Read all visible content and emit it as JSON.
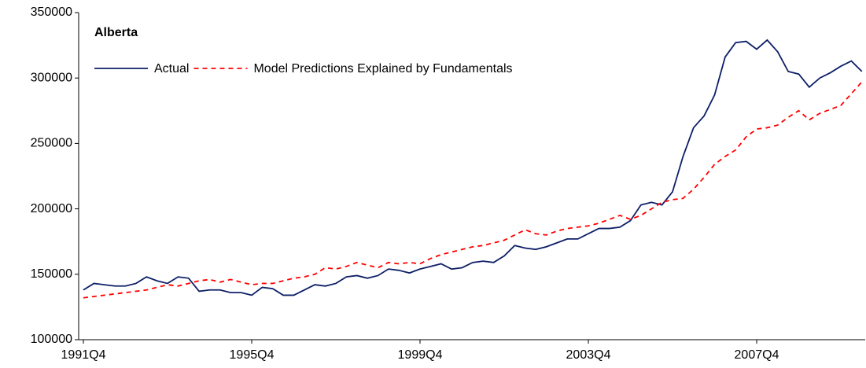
{
  "chart_data": {
    "type": "line",
    "title": "Alberta",
    "categories": [
      "1991Q4",
      null,
      null,
      null,
      null,
      null,
      null,
      null,
      null,
      null,
      null,
      null,
      null,
      null,
      null,
      null,
      "1995Q4",
      null,
      null,
      null,
      null,
      null,
      null,
      null,
      null,
      null,
      null,
      null,
      null,
      null,
      null,
      null,
      "1999Q4",
      null,
      null,
      null,
      null,
      null,
      null,
      null,
      null,
      null,
      null,
      null,
      null,
      null,
      null,
      null,
      "2003Q4",
      null,
      null,
      null,
      null,
      null,
      null,
      null,
      null,
      null,
      null,
      null,
      null,
      null,
      null,
      null,
      "2007Q4",
      null,
      null,
      null,
      null,
      null,
      null,
      null,
      null,
      null,
      null
    ],
    "series": [
      {
        "name": "Actual",
        "color": "#0d1f66",
        "dash": false,
        "values": [
          138000,
          143000,
          142000,
          141000,
          141000,
          143000,
          148000,
          145000,
          143000,
          148000,
          147000,
          137000,
          138000,
          138000,
          136000,
          136000,
          134000,
          140000,
          139000,
          134000,
          134000,
          138000,
          142000,
          141000,
          143000,
          148000,
          149000,
          147000,
          149000,
          154000,
          153000,
          151000,
          154000,
          156000,
          158000,
          154000,
          155000,
          159000,
          160000,
          159000,
          164000,
          172000,
          170000,
          169000,
          171000,
          174000,
          177000,
          177000,
          181000,
          185000,
          185000,
          186000,
          191000,
          203000,
          205000,
          203000,
          213000,
          240000,
          262000,
          271000,
          287000,
          316000,
          327000,
          328000,
          322000,
          329000,
          320000,
          305000,
          303000,
          293000,
          300000,
          304000,
          309000,
          313000,
          305000
        ]
      },
      {
        "name": "Model Predictions Explained by Fundamentals",
        "color": "#ff0000",
        "dash": true,
        "values": [
          132000,
          133000,
          134000,
          135000,
          136000,
          137000,
          138000,
          140000,
          142000,
          141000,
          143000,
          145000,
          146000,
          144000,
          146000,
          144000,
          142000,
          143000,
          143000,
          145000,
          147000,
          148000,
          150000,
          155000,
          154000,
          156000,
          159000,
          157000,
          155000,
          159000,
          158000,
          159000,
          158000,
          162000,
          165000,
          167000,
          169000,
          171000,
          172000,
          174000,
          176000,
          180000,
          184000,
          181000,
          180000,
          183000,
          185000,
          186000,
          187000,
          189000,
          192000,
          195000,
          192000,
          195000,
          200000,
          205000,
          207000,
          208000,
          215000,
          224000,
          234000,
          240000,
          245000,
          255000,
          261000,
          262000,
          264000,
          270000,
          275000,
          268000,
          273000,
          276000,
          279000,
          288000,
          297000
        ]
      }
    ],
    "ylim": [
      100000,
      350000
    ],
    "yticks": [
      100000,
      150000,
      200000,
      250000,
      300000,
      350000
    ]
  }
}
